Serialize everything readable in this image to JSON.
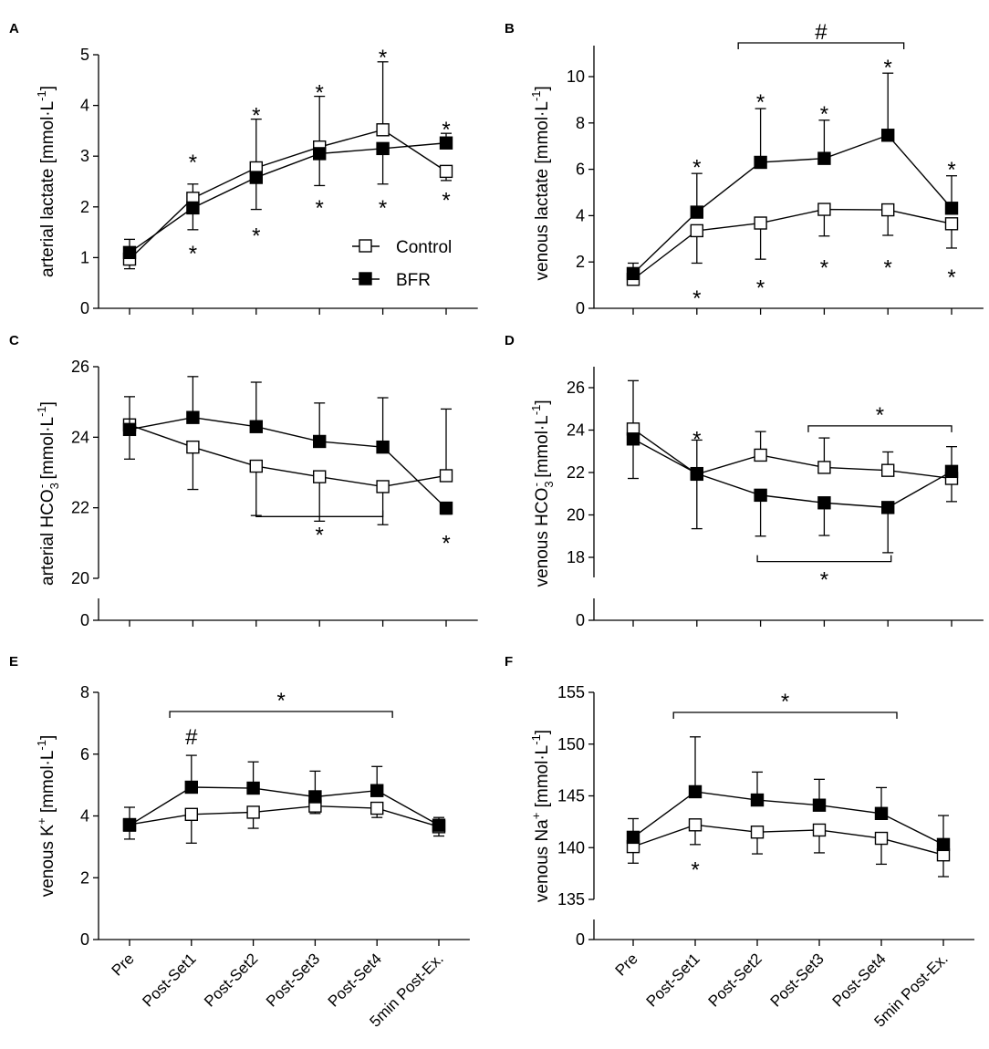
{
  "categories": [
    "Pre",
    "Post-Set1",
    "Post-Set2",
    "Post-Set3",
    "Post-Set4",
    "5min Post-Ex."
  ],
  "legend": {
    "control": "Control",
    "bfr": "BFR"
  },
  "chart_data": [
    {
      "id": "A",
      "label": "A",
      "type": "line",
      "ylabel_parts": [
        "arterial lactate [mmol·L",
        "-1",
        "]"
      ],
      "ylim": [
        0,
        5
      ],
      "yticks": [
        0,
        1,
        2,
        3,
        4,
        5
      ],
      "series": [
        {
          "name": "Control",
          "values": [
            0.97,
            2.17,
            2.77,
            3.18,
            3.52,
            2.7
          ],
          "err_up": [
            0.97,
            2.45,
            3.73,
            4.18,
            4.86,
            2.7
          ],
          "err_down": [
            0.78,
            2.17,
            2.77,
            3.18,
            3.52,
            2.52
          ]
        },
        {
          "name": "BFR",
          "values": [
            1.1,
            1.98,
            2.58,
            3.05,
            3.15,
            3.26
          ],
          "err_up": [
            1.36,
            1.98,
            2.58,
            3.05,
            3.15,
            3.45
          ],
          "err_down": [
            1.1,
            1.55,
            1.95,
            2.42,
            2.45,
            3.26
          ]
        }
      ],
      "annotations": [
        {
          "text": "*",
          "x": 1,
          "y": 2.95
        },
        {
          "text": "*",
          "x": 1,
          "y": 1.15
        },
        {
          "text": "*",
          "x": 2,
          "y": 3.88
        },
        {
          "text": "*",
          "x": 2,
          "y": 1.5
        },
        {
          "text": "*",
          "x": 3,
          "y": 4.33
        },
        {
          "text": "*",
          "x": 3,
          "y": 2.05
        },
        {
          "text": "*",
          "x": 4,
          "y": 5.02
        },
        {
          "text": "*",
          "x": 4,
          "y": 2.05
        },
        {
          "text": "*",
          "x": 5,
          "y": 3.6
        },
        {
          "text": "*",
          "x": 5,
          "y": 2.2
        }
      ],
      "legend_shown": true
    },
    {
      "id": "B",
      "label": "B",
      "type": "line",
      "ylabel_parts": [
        "venous lactate [mmol·L",
        "-1",
        "]"
      ],
      "ylim": [
        0,
        10.8
      ],
      "yticks": [
        0,
        2,
        4,
        6,
        8,
        10
      ],
      "series": [
        {
          "name": "Control",
          "values": [
            1.25,
            3.35,
            3.68,
            4.27,
            4.25,
            3.65
          ],
          "err_up": [
            1.25,
            3.35,
            3.68,
            4.27,
            4.25,
            3.65
          ],
          "err_down": [
            1.1,
            1.95,
            2.12,
            3.12,
            3.15,
            2.6
          ]
        },
        {
          "name": "BFR",
          "values": [
            1.5,
            4.15,
            6.3,
            6.47,
            7.47,
            4.32
          ],
          "err_up": [
            1.95,
            5.82,
            8.62,
            8.12,
            10.15,
            5.72
          ],
          "err_down": [
            1.5,
            4.15,
            6.3,
            6.47,
            7.47,
            4.32
          ]
        }
      ],
      "annotations": [
        {
          "text": "*",
          "x": 1,
          "y": 6.25
        },
        {
          "text": "*",
          "x": 1,
          "y": 0.6
        },
        {
          "text": "*",
          "x": 2,
          "y": 9.05
        },
        {
          "text": "*",
          "x": 2,
          "y": 1.05
        },
        {
          "text": "*",
          "x": 3,
          "y": 8.55
        },
        {
          "text": "*",
          "x": 3,
          "y": 1.9
        },
        {
          "text": "*",
          "x": 4,
          "y": 10.55
        },
        {
          "text": "*",
          "x": 4,
          "y": 1.9
        },
        {
          "text": "*",
          "x": 5,
          "y": 6.15
        },
        {
          "text": "*",
          "x": 5,
          "y": 1.5
        }
      ],
      "bracket": {
        "x1": 1.65,
        "x2": 4.25,
        "y": 11.25,
        "label": "#"
      }
    },
    {
      "id": "C",
      "label": "C",
      "type": "line",
      "ylabel_parts": [
        "arterial HCO",
        "3",
        "-",
        " [mmol·L",
        "-1",
        "]"
      ],
      "ylim": [
        20,
        26
      ],
      "yticks": [
        20,
        22,
        24,
        26
      ],
      "axis_break": true,
      "series": [
        {
          "name": "Control",
          "values": [
            24.35,
            23.72,
            23.18,
            22.88,
            22.6,
            22.91
          ],
          "err_up": [
            24.35,
            23.72,
            23.18,
            22.88,
            22.6,
            24.8
          ],
          "err_down": [
            23.38,
            22.52,
            21.78,
            21.62,
            21.52,
            22.91
          ]
        },
        {
          "name": "BFR",
          "values": [
            24.22,
            24.56,
            24.3,
            23.88,
            23.72,
            21.99
          ],
          "err_up": [
            25.15,
            25.72,
            25.56,
            24.97,
            25.12,
            21.99
          ],
          "err_down": [
            24.22,
            24.56,
            24.3,
            23.88,
            23.72,
            21.82
          ]
        }
      ],
      "annotations": [
        {
          "text": "*",
          "x": 5,
          "y": 21.1
        }
      ],
      "bracket": {
        "x1": 2,
        "x2": 4,
        "y": 21.75,
        "label": "*",
        "below": true
      }
    },
    {
      "id": "D",
      "label": "D",
      "type": "line",
      "ylabel_parts": [
        "venous HCO",
        "3",
        "-",
        " [mmol·L",
        "-1",
        "]"
      ],
      "ylim": [
        17,
        27
      ],
      "yticks": [
        18,
        20,
        22,
        24,
        26
      ],
      "axis_break": true,
      "series": [
        {
          "name": "Control",
          "values": [
            24.05,
            21.92,
            22.82,
            22.24,
            22.1,
            21.72
          ],
          "err_up": [
            26.33,
            21.92,
            23.93,
            23.63,
            22.97,
            21.72
          ],
          "err_down": [
            24.05,
            21.92,
            22.82,
            22.24,
            22.1,
            20.63
          ]
        },
        {
          "name": "BFR",
          "values": [
            23.58,
            21.95,
            20.93,
            20.57,
            20.35,
            22.05
          ],
          "err_up": [
            23.58,
            23.53,
            20.93,
            20.57,
            20.35,
            23.22
          ],
          "err_down": [
            21.72,
            19.35,
            19.0,
            19.03,
            18.22,
            22.05
          ]
        }
      ],
      "annotations": [
        {
          "text": "*",
          "x": 1,
          "y": 23.75
        }
      ],
      "brackets": [
        {
          "x1": 2.75,
          "x2": 5,
          "y": 24.2,
          "label": "*"
        },
        {
          "x1": 1.95,
          "x2": 4.05,
          "y": 17.8,
          "label": "*",
          "below": true
        }
      ]
    },
    {
      "id": "E",
      "label": "E",
      "type": "line",
      "ylabel_parts": [
        "venous K",
        "+",
        "",
        " [mmol·L",
        "-1",
        "]"
      ],
      "ylim": [
        0,
        8
      ],
      "yticks": [
        0,
        2,
        4,
        6,
        8
      ],
      "series": [
        {
          "name": "Control",
          "values": [
            3.72,
            4.05,
            4.12,
            4.32,
            4.25,
            3.65
          ],
          "err_up": [
            3.72,
            4.05,
            4.12,
            4.32,
            4.25,
            3.65
          ],
          "err_down": [
            3.25,
            3.12,
            3.6,
            4.08,
            3.95,
            3.35
          ]
        },
        {
          "name": "BFR",
          "values": [
            3.7,
            4.93,
            4.9,
            4.62,
            4.82,
            3.7
          ],
          "err_up": [
            4.28,
            5.96,
            5.75,
            5.45,
            5.6,
            3.95
          ],
          "err_down": [
            3.7,
            4.93,
            4.9,
            4.62,
            4.82,
            3.7
          ]
        }
      ],
      "annotations": [
        {
          "text": "#",
          "x": 1,
          "y": 6.55,
          "kind": "hash"
        }
      ],
      "bracket": {
        "x1": 0.65,
        "x2": 4.25,
        "y": 7.35,
        "label": "*"
      }
    },
    {
      "id": "F",
      "label": "F",
      "type": "line",
      "ylabel_parts": [
        "venous Na",
        "+",
        "",
        " [mmol·L",
        "-1",
        "]"
      ],
      "ylim": [
        135,
        155
      ],
      "yticks": [
        135,
        140,
        145,
        150,
        155
      ],
      "axis_break": true,
      "series": [
        {
          "name": "Control",
          "values": [
            140.1,
            142.2,
            141.5,
            141.7,
            140.9,
            139.3
          ],
          "err_up": [
            140.1,
            142.2,
            141.5,
            141.7,
            140.9,
            139.3
          ],
          "err_down": [
            138.5,
            140.3,
            139.4,
            139.5,
            138.4,
            137.2
          ]
        },
        {
          "name": "BFR",
          "values": [
            141.0,
            145.4,
            144.6,
            144.1,
            143.3,
            140.3
          ],
          "err_up": [
            142.8,
            150.7,
            147.3,
            146.6,
            145.8,
            143.1
          ],
          "err_down": [
            141.0,
            145.4,
            144.6,
            144.1,
            143.3,
            140.3
          ]
        }
      ],
      "annotations": [
        {
          "text": "*",
          "x": 1,
          "y": 138.2
        }
      ],
      "bracket": {
        "x1": 0.65,
        "x2": 4.25,
        "y": 153.3,
        "label": "*"
      }
    }
  ]
}
